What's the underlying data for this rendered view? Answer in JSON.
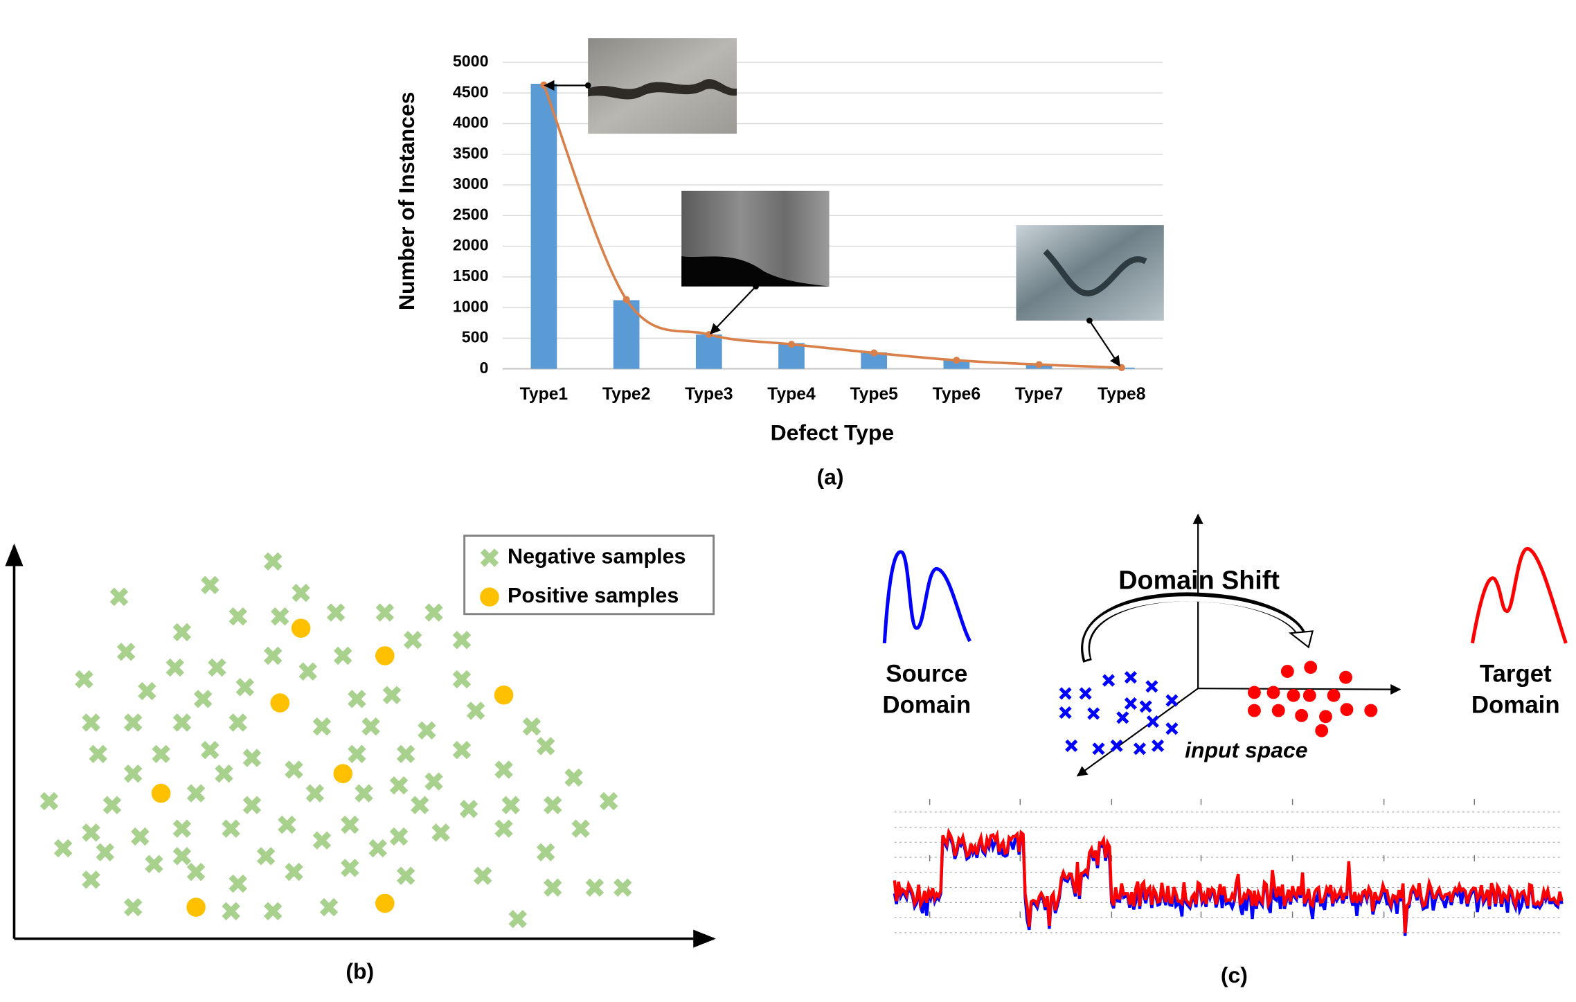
{
  "chart_data": [
    {
      "type": "bar",
      "ylabel": "Number of Instances",
      "xlabel": "Defect Type",
      "caption": "(a)",
      "categories": [
        "Type1",
        "Type2",
        "Type3",
        "Type4",
        "Type5",
        "Type6",
        "Type7",
        "Type8"
      ],
      "series": [
        {
          "type": "bar",
          "color": "#5b9bd5",
          "values": [
            4650,
            1120,
            560,
            420,
            270,
            140,
            70,
            20
          ]
        },
        {
          "type": "line",
          "color": "#d9804a",
          "values": [
            4630,
            1130,
            560,
            400,
            260,
            140,
            70,
            20
          ]
        }
      ],
      "ylim": [
        0,
        5000
      ],
      "yticks": [
        0,
        500,
        1000,
        1500,
        2000,
        2500,
        3000,
        3500,
        4000,
        4500,
        5000
      ],
      "grid": true
    },
    {
      "type": "scatter",
      "caption": "(b)",
      "xlim": [
        0,
        100
      ],
      "ylim": [
        0,
        100
      ],
      "legend": "upper right",
      "series": [
        {
          "name": "Negative samples",
          "color": "#a9d18e",
          "marker": "x",
          "x": [
            37,
            28,
            15,
            41,
            32,
            38,
            46,
            53,
            60,
            24,
            16,
            37,
            47,
            57,
            64,
            10,
            23,
            29,
            42,
            19,
            33,
            27,
            49,
            54,
            64,
            11,
            17,
            24,
            32,
            44,
            51,
            59,
            66,
            74,
            12,
            21,
            28,
            34,
            40,
            49,
            56,
            64,
            76,
            17,
            30,
            50,
            55,
            60,
            70,
            80,
            5,
            14,
            26,
            34,
            43,
            58,
            65,
            71,
            77,
            85,
            11,
            18,
            24,
            31,
            39,
            48,
            55,
            61,
            70,
            81,
            7,
            13,
            20,
            24,
            36,
            44,
            52,
            76,
            26,
            40,
            48,
            56,
            67,
            11,
            32,
            77,
            83,
            87,
            17,
            31,
            37,
            45,
            72
          ],
          "y": [
            96,
            90,
            87,
            88,
            82,
            82,
            83,
            83,
            83,
            78,
            73,
            72,
            72,
            76,
            76,
            66,
            69,
            69,
            68,
            63,
            64,
            61,
            61,
            62,
            66,
            55,
            55,
            55,
            55,
            54,
            54,
            53,
            58,
            54,
            47,
            47,
            48,
            46,
            43,
            47,
            47,
            48,
            49,
            42,
            42,
            37,
            39,
            40,
            43,
            41,
            35,
            34,
            37,
            34,
            37,
            34,
            33,
            34,
            34,
            35,
            27,
            26,
            28,
            28,
            29,
            29,
            26,
            27,
            28,
            28,
            23,
            22,
            19,
            21,
            21,
            25,
            23,
            22,
            17,
            17,
            18,
            16,
            16,
            15,
            14,
            13,
            13,
            13,
            8,
            7,
            7,
            8,
            5
          ]
        },
        {
          "name": "Positive samples",
          "color": "#ffc000",
          "marker": "o",
          "x": [
            41,
            53,
            70,
            38,
            47,
            21,
            26,
            53
          ],
          "y": [
            79,
            72,
            62,
            60,
            42,
            37,
            8,
            9
          ]
        }
      ]
    }
  ],
  "diagram": {
    "title": "Domain Shift",
    "source_label": [
      "Source",
      "Domain"
    ],
    "target_label": [
      "Target",
      "Domain"
    ],
    "space_label": "input space",
    "caption": "(c)"
  }
}
